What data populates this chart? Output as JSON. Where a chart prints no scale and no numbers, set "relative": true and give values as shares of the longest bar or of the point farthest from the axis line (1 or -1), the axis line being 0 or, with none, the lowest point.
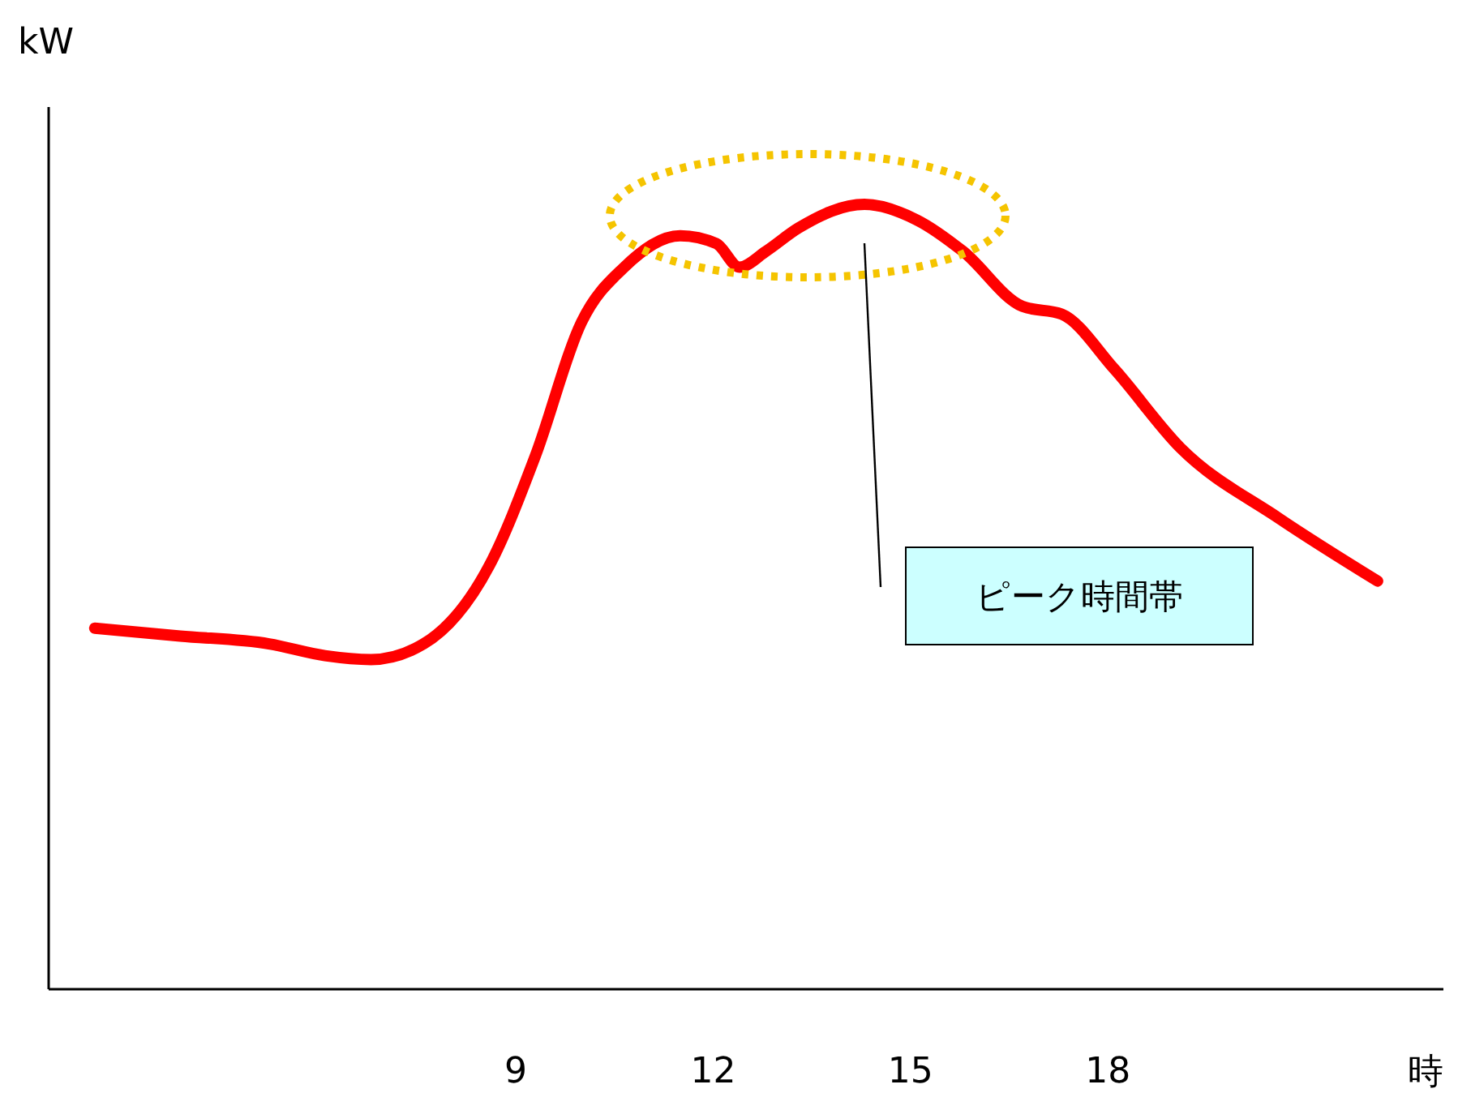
{
  "chart_data": {
    "type": "line",
    "relative": true,
    "xlabel": "時",
    "ylabel": "kW",
    "annotations": [
      "ピーク時間帯"
    ],
    "xlim": [
      1.9,
      23.1
    ],
    "xticks": [
      9,
      12,
      15,
      18
    ],
    "marker": "none",
    "line_style": "solid",
    "series": [
      {
        "color": "#ff0000",
        "x": [
          2.6,
          3.9,
          5.25,
          6.1,
          6.8,
          7.6,
          8.6,
          9.3,
          10.0,
          10.65,
          11.5,
          12.05,
          12.4,
          12.8,
          13.3,
          14.3,
          15.1,
          15.8,
          16.7,
          17.3,
          18.1,
          19.1,
          20.6,
          22.1
        ],
        "values": [
          0.46,
          0.45,
          0.44,
          0.425,
          0.42,
          0.44,
          0.54,
          0.68,
          0.85,
          0.92,
          0.96,
          0.95,
          0.92,
          0.94,
          0.97,
          1.0,
          0.98,
          0.94,
          0.87,
          0.86,
          0.79,
          0.69,
          0.6,
          0.52
        ]
      }
    ]
  }
}
